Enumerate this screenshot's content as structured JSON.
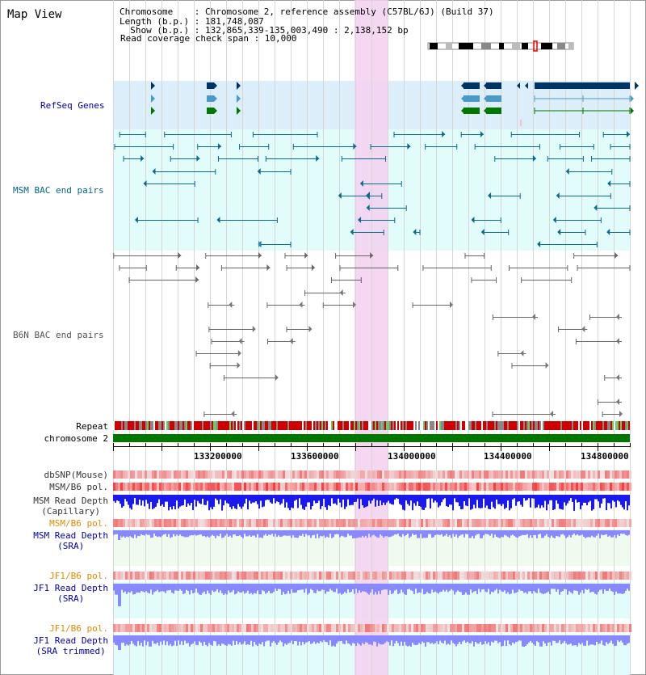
{
  "header": {
    "title": "Map View",
    "chromosome_line": "Chromosome    : Chromosome 2, reference assembly (C57BL/6J) (Build 37)",
    "length_line": "Length (b.p.) : 181,748,087",
    "show_line": "  Show (b.p.) : 132,865,339-135,003,490 : 2,138,152 bp",
    "coverage_line": "Read coverage check span : 10,000"
  },
  "tracks": {
    "refseq": "RefSeq Genes",
    "msm_bac": "MSM BAC end pairs",
    "b6n_bac": "B6N BAC end pairs",
    "repeat": "Repeat",
    "chromosome": "chromosome 2",
    "dbsnp": "dbSNP(Mouse)",
    "msm_b6_pol_1": "MSM/B6 pol.",
    "msm_depth_cap_1": "MSM Read Depth",
    "msm_depth_cap_2": "(Capillary)",
    "msm_b6_pol_2": "MSM/B6 pol.",
    "msm_depth_sra_1": "MSM Read Depth",
    "msm_depth_sra_2": "(SRA)",
    "jf1_b6_pol_1": "JF1/B6 pol.",
    "jf1_depth_sra_1": "JF1 Read Depth",
    "jf1_depth_sra_2": "(SRA)",
    "jf1_b6_pol_2": "JF1/B6 pol.",
    "jf1_depth_trim_1": "JF1 Read Depth",
    "jf1_depth_trim_2": "(SRA trimmed)"
  },
  "axis": {
    "ticks": [
      "133200000",
      "133600000",
      "134000000",
      "134400000",
      "134800000"
    ]
  },
  "colors": {
    "refseq_bg": "#dbeefa",
    "msm_bg": "#e2fbfb",
    "highlight": "#f5d0f0",
    "chromosome_bar": "#007700",
    "msm_gene": "#003366",
    "repeat_red": "#cc0000",
    "depth_blue": "#1a1aee",
    "depth_light": "#8888ff",
    "label_orange": "#e08a00",
    "label_blue": "#0000aa"
  }
}
